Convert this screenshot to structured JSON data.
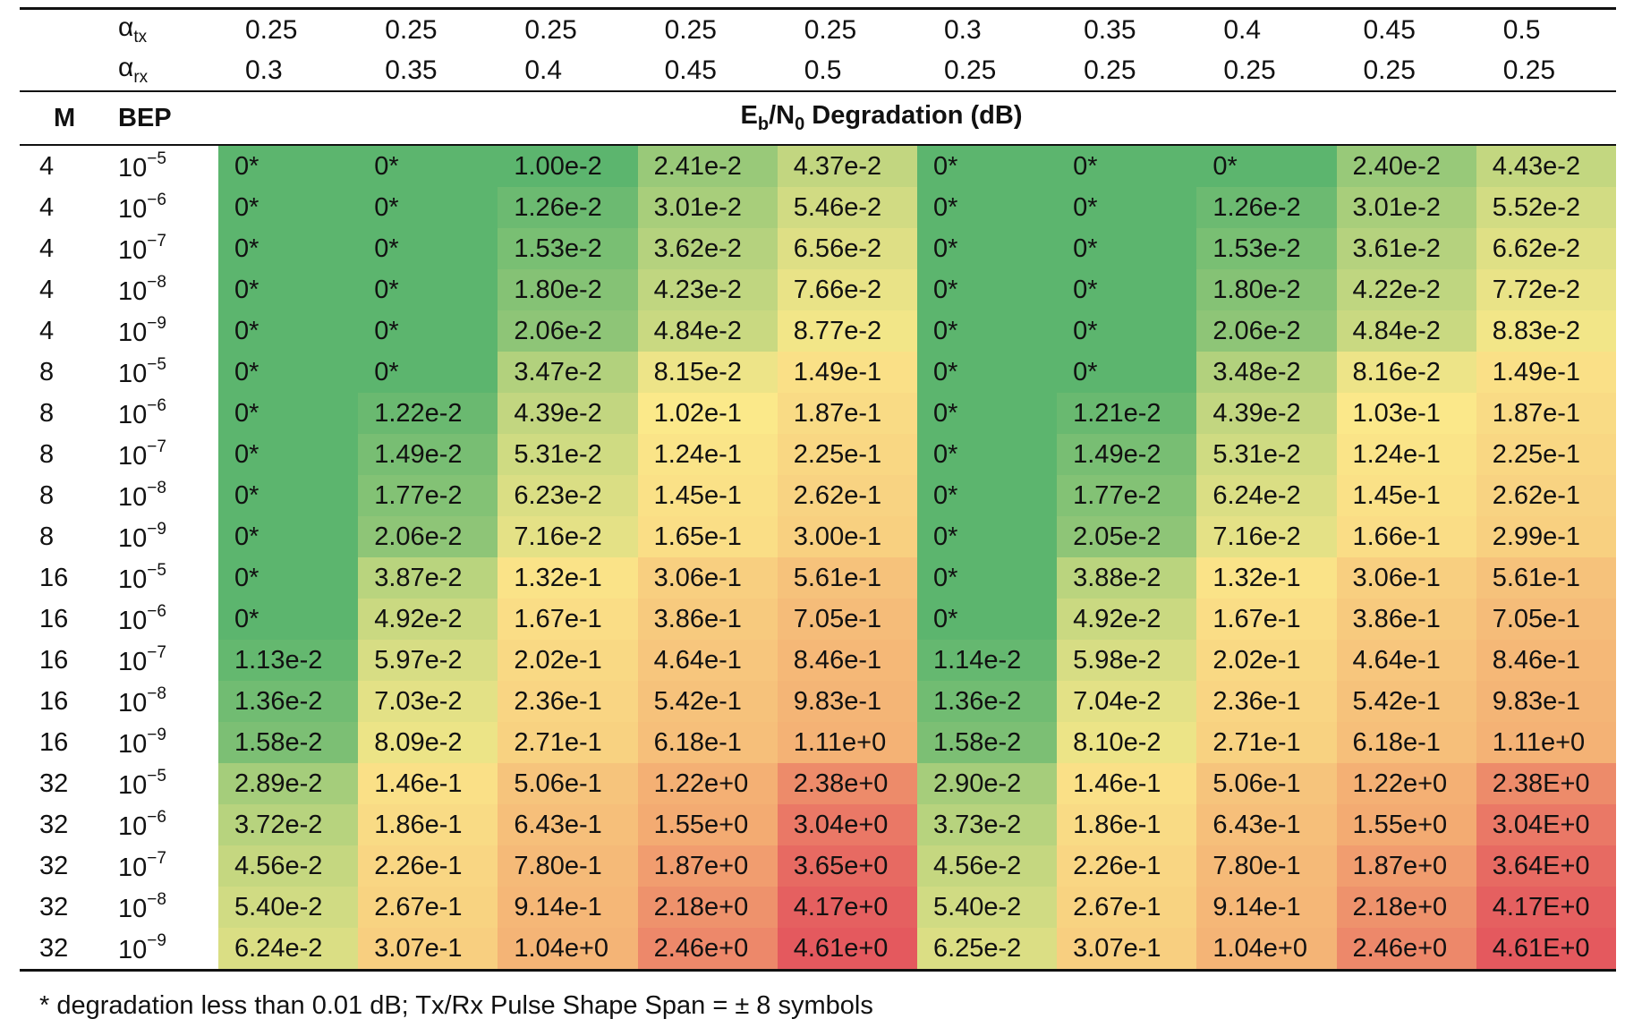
{
  "table": {
    "alpha_tx_symbol": "α",
    "alpha_tx_sub": "tx",
    "alpha_rx_symbol": "α",
    "alpha_rx_sub": "rx",
    "alpha_tx": [
      "0.25",
      "0.25",
      "0.25",
      "0.25",
      "0.25",
      "0.3",
      "0.35",
      "0.4",
      "0.45",
      "0.5"
    ],
    "alpha_rx": [
      "0.3",
      "0.35",
      "0.4",
      "0.45",
      "0.5",
      "0.25",
      "0.25",
      "0.25",
      "0.25",
      "0.25"
    ],
    "header": {
      "m": "M",
      "bep": "BEP",
      "degradation_pre": "E",
      "degradation_sub1": "b",
      "degradation_mid": "/N",
      "degradation_sub2": "0",
      "degradation_post": " Degradation (dB)"
    },
    "rows": [
      {
        "m": "4",
        "bep_base": "10",
        "bep_exp": "−5",
        "values": [
          "0*",
          "0*",
          "1.00e-2",
          "2.41e-2",
          "4.37e-2",
          "0*",
          "0*",
          "0*",
          "2.40e-2",
          "4.43e-2"
        ]
      },
      {
        "m": "4",
        "bep_base": "10",
        "bep_exp": "−6",
        "values": [
          "0*",
          "0*",
          "1.26e-2",
          "3.01e-2",
          "5.46e-2",
          "0*",
          "0*",
          "1.26e-2",
          "3.01e-2",
          "5.52e-2"
        ]
      },
      {
        "m": "4",
        "bep_base": "10",
        "bep_exp": "−7",
        "values": [
          "0*",
          "0*",
          "1.53e-2",
          "3.62e-2",
          "6.56e-2",
          "0*",
          "0*",
          "1.53e-2",
          "3.61e-2",
          "6.62e-2"
        ]
      },
      {
        "m": "4",
        "bep_base": "10",
        "bep_exp": "−8",
        "values": [
          "0*",
          "0*",
          "1.80e-2",
          "4.23e-2",
          "7.66e-2",
          "0*",
          "0*",
          "1.80e-2",
          "4.22e-2",
          "7.72e-2"
        ]
      },
      {
        "m": "4",
        "bep_base": "10",
        "bep_exp": "−9",
        "values": [
          "0*",
          "0*",
          "2.06e-2",
          "4.84e-2",
          "8.77e-2",
          "0*",
          "0*",
          "2.06e-2",
          "4.84e-2",
          "8.83e-2"
        ]
      },
      {
        "m": "8",
        "bep_base": "10",
        "bep_exp": "−5",
        "values": [
          "0*",
          "0*",
          "3.47e-2",
          "8.15e-2",
          "1.49e-1",
          "0*",
          "0*",
          "3.48e-2",
          "8.16e-2",
          "1.49e-1"
        ]
      },
      {
        "m": "8",
        "bep_base": "10",
        "bep_exp": "−6",
        "values": [
          "0*",
          "1.22e-2",
          "4.39e-2",
          "1.02e-1",
          "1.87e-1",
          "0*",
          "1.21e-2",
          "4.39e-2",
          "1.03e-1",
          "1.87e-1"
        ]
      },
      {
        "m": "8",
        "bep_base": "10",
        "bep_exp": "−7",
        "values": [
          "0*",
          "1.49e-2",
          "5.31e-2",
          "1.24e-1",
          "2.25e-1",
          "0*",
          "1.49e-2",
          "5.31e-2",
          "1.24e-1",
          "2.25e-1"
        ]
      },
      {
        "m": "8",
        "bep_base": "10",
        "bep_exp": "−8",
        "values": [
          "0*",
          "1.77e-2",
          "6.23e-2",
          "1.45e-1",
          "2.62e-1",
          "0*",
          "1.77e-2",
          "6.24e-2",
          "1.45e-1",
          "2.62e-1"
        ]
      },
      {
        "m": "8",
        "bep_base": "10",
        "bep_exp": "−9",
        "values": [
          "0*",
          "2.06e-2",
          "7.16e-2",
          "1.65e-1",
          "3.00e-1",
          "0*",
          "2.05e-2",
          "7.16e-2",
          "1.66e-1",
          "2.99e-1"
        ]
      },
      {
        "m": "16",
        "bep_base": "10",
        "bep_exp": "−5",
        "values": [
          "0*",
          "3.87e-2",
          "1.32e-1",
          "3.06e-1",
          "5.61e-1",
          "0*",
          "3.88e-2",
          "1.32e-1",
          "3.06e-1",
          "5.61e-1"
        ]
      },
      {
        "m": "16",
        "bep_base": "10",
        "bep_exp": "−6",
        "values": [
          "0*",
          "4.92e-2",
          "1.67e-1",
          "3.86e-1",
          "7.05e-1",
          "0*",
          "4.92e-2",
          "1.67e-1",
          "3.86e-1",
          "7.05e-1"
        ]
      },
      {
        "m": "16",
        "bep_base": "10",
        "bep_exp": "−7",
        "values": [
          "1.13e-2",
          "5.97e-2",
          "2.02e-1",
          "4.64e-1",
          "8.46e-1",
          "1.14e-2",
          "5.98e-2",
          "2.02e-1",
          "4.64e-1",
          "8.46e-1"
        ]
      },
      {
        "m": "16",
        "bep_base": "10",
        "bep_exp": "−8",
        "values": [
          "1.36e-2",
          "7.03e-2",
          "2.36e-1",
          "5.42e-1",
          "9.83e-1",
          "1.36e-2",
          "7.04e-2",
          "2.36e-1",
          "5.42e-1",
          "9.83e-1"
        ]
      },
      {
        "m": "16",
        "bep_base": "10",
        "bep_exp": "−9",
        "values": [
          "1.58e-2",
          "8.09e-2",
          "2.71e-1",
          "6.18e-1",
          "1.11e+0",
          "1.58e-2",
          "8.10e-2",
          "2.71e-1",
          "6.18e-1",
          "1.11e+0"
        ]
      },
      {
        "m": "32",
        "bep_base": "10",
        "bep_exp": "−5",
        "values": [
          "2.89e-2",
          "1.46e-1",
          "5.06e-1",
          "1.22e+0",
          "2.38e+0",
          "2.90e-2",
          "1.46e-1",
          "5.06e-1",
          "1.22e+0",
          "2.38E+0"
        ]
      },
      {
        "m": "32",
        "bep_base": "10",
        "bep_exp": "−6",
        "values": [
          "3.72e-2",
          "1.86e-1",
          "6.43e-1",
          "1.55e+0",
          "3.04e+0",
          "3.73e-2",
          "1.86e-1",
          "6.43e-1",
          "1.55e+0",
          "3.04E+0"
        ]
      },
      {
        "m": "32",
        "bep_base": "10",
        "bep_exp": "−7",
        "values": [
          "4.56e-2",
          "2.26e-1",
          "7.80e-1",
          "1.87e+0",
          "3.65e+0",
          "4.56e-2",
          "2.26e-1",
          "7.80e-1",
          "1.87e+0",
          "3.64E+0"
        ]
      },
      {
        "m": "32",
        "bep_base": "10",
        "bep_exp": "−8",
        "values": [
          "5.40e-2",
          "2.67e-1",
          "9.14e-1",
          "2.18e+0",
          "4.17e+0",
          "5.40e-2",
          "2.67e-1",
          "9.14e-1",
          "2.18e+0",
          "4.17E+0"
        ]
      },
      {
        "m": "32",
        "bep_base": "10",
        "bep_exp": "−9",
        "values": [
          "6.24e-2",
          "3.07e-1",
          "1.04e+0",
          "2.46e+0",
          "4.61e+0",
          "6.25e-2",
          "3.07e-1",
          "1.04e+0",
          "2.46e+0",
          "4.61E+0"
        ]
      }
    ]
  },
  "heatmap_colors": {
    "green": "#5cb56e",
    "yellow": "#fbe98a",
    "orange": "#f3aa72",
    "red": "#e4595e"
  },
  "footnote": "* degradation less than 0.01 dB; Tx/Rx Pulse Shape Span = ± 8 symbols"
}
